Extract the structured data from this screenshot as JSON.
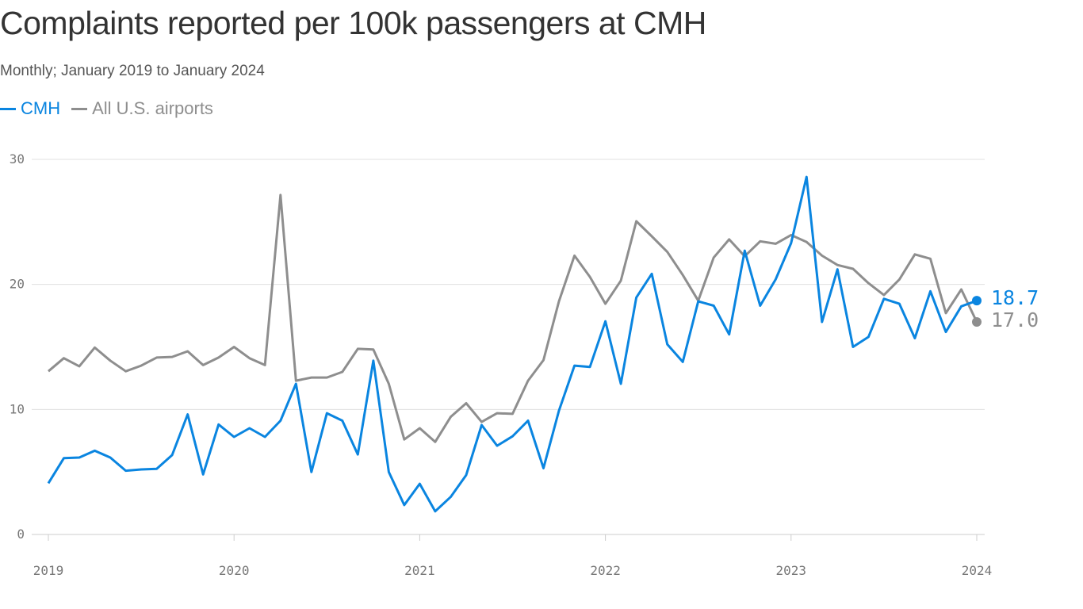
{
  "chart_data": {
    "type": "line",
    "title": "Complaints reported per 100k passengers at CMH",
    "subtitle": "Monthly; January 2019 to January 2024",
    "x_start": "2019-01",
    "x_end": "2024-01",
    "x_ticks": [
      "2019",
      "2020",
      "2021",
      "2022",
      "2023",
      "2024"
    ],
    "y_ticks": [
      "0",
      "10",
      "20",
      "30"
    ],
    "ylim": [
      0,
      30
    ],
    "grid": "horizontal",
    "legend": "top-left",
    "series": [
      {
        "name": "CMH",
        "color": "#0a85e0",
        "end_label": "18.7",
        "values": [
          4.1,
          6.1,
          6.15,
          6.7,
          6.15,
          5.1,
          5.2,
          5.25,
          6.35,
          9.6,
          4.8,
          8.8,
          7.8,
          8.5,
          7.8,
          9.1,
          12.05,
          5.0,
          9.7,
          9.1,
          6.4,
          13.9,
          5.0,
          2.35,
          4.05,
          1.85,
          3.0,
          4.75,
          8.75,
          7.1,
          7.85,
          9.1,
          5.3,
          9.9,
          13.5,
          13.4,
          17.05,
          12.05,
          18.95,
          20.85,
          15.2,
          13.8,
          18.65,
          18.3,
          16.0,
          22.7,
          18.3,
          20.4,
          23.3,
          28.6,
          17.0,
          21.2,
          15.0,
          15.8,
          18.85,
          18.45,
          15.7,
          19.45,
          16.2,
          18.25,
          18.7
        ]
      },
      {
        "name": "All U.S. airports",
        "color": "#8e8e8e",
        "end_label": "17.0",
        "values": [
          13.05,
          14.1,
          13.45,
          14.95,
          13.9,
          13.05,
          13.5,
          14.15,
          14.2,
          14.65,
          13.55,
          14.15,
          15.0,
          14.1,
          13.55,
          27.15,
          12.3,
          12.55,
          12.55,
          13.0,
          14.85,
          14.8,
          12.05,
          7.6,
          8.5,
          7.4,
          9.4,
          10.5,
          9.0,
          9.7,
          9.65,
          12.3,
          13.95,
          18.65,
          22.3,
          20.6,
          18.45,
          20.3,
          25.05,
          23.85,
          22.6,
          20.75,
          18.7,
          22.15,
          23.6,
          22.25,
          23.45,
          23.25,
          23.95,
          23.4,
          22.3,
          21.55,
          21.25,
          20.1,
          19.15,
          20.4,
          22.4,
          22.05,
          17.7,
          19.6,
          17.0
        ]
      }
    ]
  }
}
